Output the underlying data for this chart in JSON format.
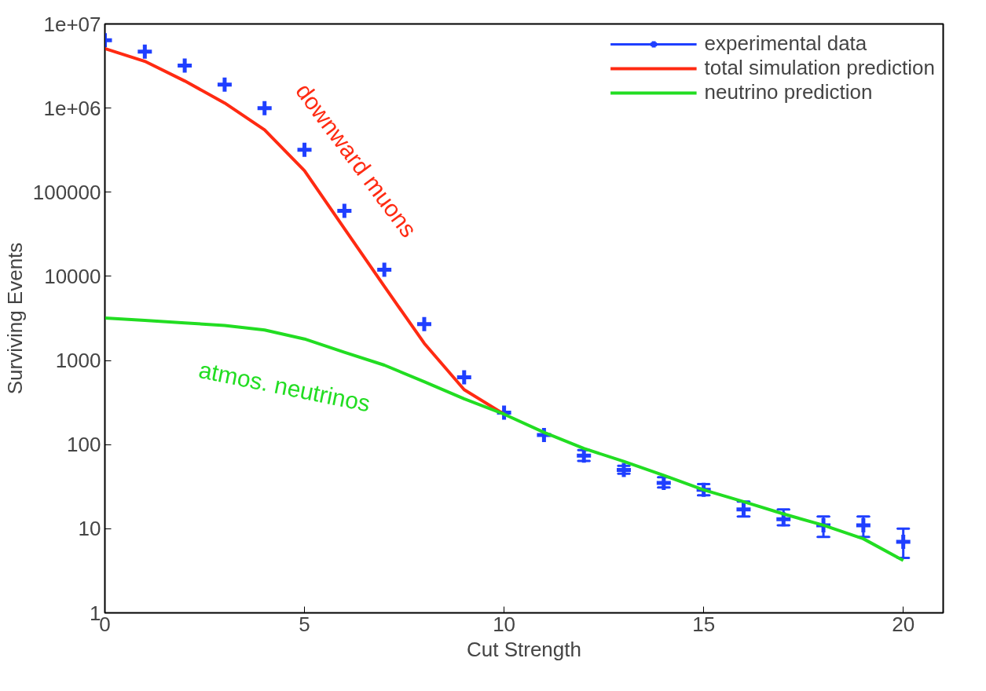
{
  "chart_data": {
    "type": "line",
    "xlabel": "Cut Strength",
    "ylabel": "Surviving Events",
    "log": "y",
    "xlim": [
      0,
      21
    ],
    "ylim": [
      1,
      10000000
    ],
    "xticks": [
      0,
      5,
      10,
      15,
      20
    ],
    "yticks": [
      1,
      10,
      100,
      1000,
      10000,
      100000,
      {
        "value": 1000000,
        "label": "1e+06"
      },
      {
        "value": 10000000,
        "label": "1e+07"
      }
    ],
    "x": [
      0,
      1,
      2,
      3,
      4,
      5,
      6,
      7,
      8,
      9,
      10,
      11,
      12,
      13,
      14,
      15,
      16,
      17,
      18,
      19,
      20
    ],
    "series": [
      {
        "name": "experimental data",
        "type": "scatter",
        "marker": "cross",
        "color": "#1f3fff",
        "values": [
          6400000,
          4700000,
          3200000,
          1900000,
          1000000,
          320000,
          60000,
          12000,
          2700,
          630,
          240,
          130,
          74,
          50,
          35,
          29,
          17,
          13,
          11,
          11,
          7
        ],
        "errors": [
          null,
          null,
          null,
          null,
          null,
          null,
          null,
          null,
          null,
          null,
          null,
          null,
          [
            64,
            86
          ],
          [
            45,
            56
          ],
          [
            31,
            41
          ],
          [
            25,
            34
          ],
          [
            14,
            21
          ],
          [
            11,
            17
          ],
          [
            8,
            14
          ],
          [
            8,
            14
          ],
          [
            4.5,
            10
          ]
        ]
      },
      {
        "name": "total simulation prediction",
        "color": "#ff2a12",
        "values": [
          5100000,
          3600000,
          2100000,
          1150000,
          550000,
          180000,
          37000,
          7600,
          1600,
          450,
          230,
          null,
          null,
          null,
          null,
          null,
          null,
          null,
          null,
          null,
          null
        ]
      },
      {
        "name": "neutrino prediction",
        "color": "#22dd22",
        "values": [
          3200,
          3000,
          2800,
          2600,
          2300,
          1800,
          1250,
          880,
          560,
          350,
          230,
          140,
          90,
          63,
          43,
          29,
          21,
          15,
          11,
          7.6,
          4.2
        ]
      }
    ],
    "annotations": [
      "downward muons",
      "atmos. neutrinos"
    ],
    "legend": "top right",
    "grid": false,
    "line_style": "solid"
  }
}
